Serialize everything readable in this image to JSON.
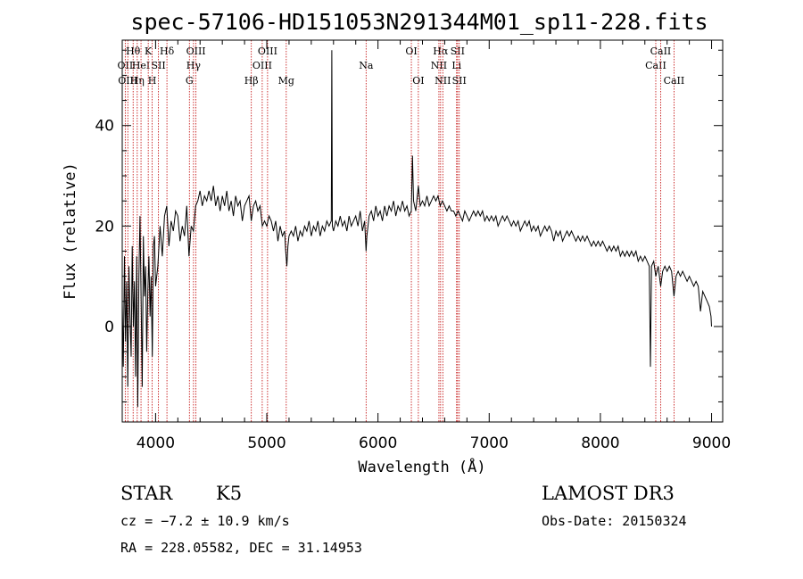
{
  "chart_data": {
    "type": "line",
    "title": "spec-57106-HD151053N291344M01_sp11-228.fits",
    "xlabel": "Wavelength (Å)",
    "ylabel": "Flux (relative)",
    "xlim": [
      3700,
      9100
    ],
    "ylim": [
      -19,
      57
    ],
    "x_ticks": [
      4000,
      5000,
      6000,
      7000,
      8000,
      9000
    ],
    "y_ticks": [
      0,
      20,
      40
    ],
    "grid": false,
    "series": [
      {
        "color": "#000000",
        "points": [
          [
            3700,
            5
          ],
          [
            3710,
            -8
          ],
          [
            3720,
            14
          ],
          [
            3730,
            -3
          ],
          [
            3740,
            9
          ],
          [
            3750,
            -12
          ],
          [
            3760,
            12
          ],
          [
            3770,
            2
          ],
          [
            3780,
            -6
          ],
          [
            3790,
            16
          ],
          [
            3800,
            0
          ],
          [
            3810,
            9
          ],
          [
            3820,
            -10
          ],
          [
            3830,
            14
          ],
          [
            3840,
            -16
          ],
          [
            3850,
            10
          ],
          [
            3860,
            22
          ],
          [
            3870,
            5
          ],
          [
            3880,
            -12
          ],
          [
            3890,
            18
          ],
          [
            3900,
            6
          ],
          [
            3910,
            12
          ],
          [
            3920,
            -5
          ],
          [
            3930,
            7
          ],
          [
            3940,
            14
          ],
          [
            3950,
            2
          ],
          [
            3960,
            10
          ],
          [
            3970,
            -6
          ],
          [
            3980,
            16
          ],
          [
            3990,
            18
          ],
          [
            4000,
            8
          ],
          [
            4020,
            12
          ],
          [
            4040,
            20
          ],
          [
            4060,
            14
          ],
          [
            4080,
            22
          ],
          [
            4100,
            24
          ],
          [
            4120,
            16
          ],
          [
            4140,
            21
          ],
          [
            4160,
            19
          ],
          [
            4180,
            23
          ],
          [
            4200,
            22
          ],
          [
            4220,
            17
          ],
          [
            4240,
            20
          ],
          [
            4260,
            18
          ],
          [
            4280,
            24
          ],
          [
            4300,
            14
          ],
          [
            4320,
            20
          ],
          [
            4340,
            19
          ],
          [
            4360,
            24
          ],
          [
            4380,
            25
          ],
          [
            4400,
            27
          ],
          [
            4420,
            24
          ],
          [
            4440,
            26
          ],
          [
            4460,
            25
          ],
          [
            4480,
            27
          ],
          [
            4500,
            25
          ],
          [
            4520,
            28
          ],
          [
            4540,
            24
          ],
          [
            4560,
            26
          ],
          [
            4580,
            23
          ],
          [
            4600,
            26
          ],
          [
            4620,
            24
          ],
          [
            4640,
            27
          ],
          [
            4660,
            23
          ],
          [
            4680,
            25
          ],
          [
            4700,
            22
          ],
          [
            4720,
            26
          ],
          [
            4740,
            24
          ],
          [
            4760,
            25
          ],
          [
            4780,
            21
          ],
          [
            4800,
            24
          ],
          [
            4820,
            25
          ],
          [
            4840,
            26
          ],
          [
            4860,
            21
          ],
          [
            4880,
            24
          ],
          [
            4900,
            25
          ],
          [
            4920,
            23
          ],
          [
            4940,
            24
          ],
          [
            4960,
            20
          ],
          [
            4980,
            21
          ],
          [
            5000,
            20
          ],
          [
            5020,
            22
          ],
          [
            5040,
            21
          ],
          [
            5060,
            19
          ],
          [
            5080,
            21
          ],
          [
            5100,
            17
          ],
          [
            5120,
            20
          ],
          [
            5140,
            18
          ],
          [
            5160,
            19
          ],
          [
            5170,
            15
          ],
          [
            5180,
            12
          ],
          [
            5190,
            16
          ],
          [
            5200,
            18
          ],
          [
            5220,
            19
          ],
          [
            5240,
            18
          ],
          [
            5260,
            20
          ],
          [
            5280,
            17
          ],
          [
            5300,
            19
          ],
          [
            5320,
            18
          ],
          [
            5340,
            20
          ],
          [
            5360,
            19
          ],
          [
            5380,
            21
          ],
          [
            5400,
            18
          ],
          [
            5420,
            20
          ],
          [
            5440,
            19
          ],
          [
            5460,
            21
          ],
          [
            5480,
            18
          ],
          [
            5500,
            20
          ],
          [
            5520,
            19
          ],
          [
            5540,
            21
          ],
          [
            5560,
            20
          ],
          [
            5580,
            21
          ],
          [
            5585,
            55
          ],
          [
            5590,
            20
          ],
          [
            5600,
            19
          ],
          [
            5620,
            21
          ],
          [
            5640,
            20
          ],
          [
            5660,
            22
          ],
          [
            5680,
            20
          ],
          [
            5700,
            21
          ],
          [
            5720,
            19
          ],
          [
            5740,
            22
          ],
          [
            5760,
            20
          ],
          [
            5780,
            21
          ],
          [
            5800,
            22
          ],
          [
            5820,
            20
          ],
          [
            5840,
            23
          ],
          [
            5860,
            19
          ],
          [
            5880,
            21
          ],
          [
            5893,
            15
          ],
          [
            5900,
            18
          ],
          [
            5920,
            22
          ],
          [
            5940,
            23
          ],
          [
            5960,
            21
          ],
          [
            5980,
            24
          ],
          [
            6000,
            22
          ],
          [
            6020,
            23
          ],
          [
            6040,
            21
          ],
          [
            6060,
            24
          ],
          [
            6080,
            22
          ],
          [
            6100,
            24
          ],
          [
            6120,
            23
          ],
          [
            6140,
            25
          ],
          [
            6160,
            22
          ],
          [
            6180,
            24
          ],
          [
            6200,
            23
          ],
          [
            6220,
            25
          ],
          [
            6240,
            23
          ],
          [
            6260,
            24
          ],
          [
            6280,
            22
          ],
          [
            6300,
            23
          ],
          [
            6310,
            34
          ],
          [
            6320,
            25
          ],
          [
            6340,
            23
          ],
          [
            6363,
            28
          ],
          [
            6380,
            24
          ],
          [
            6400,
            25
          ],
          [
            6420,
            24
          ],
          [
            6440,
            26
          ],
          [
            6460,
            24
          ],
          [
            6480,
            25
          ],
          [
            6500,
            26
          ],
          [
            6520,
            25
          ],
          [
            6540,
            26
          ],
          [
            6560,
            24
          ],
          [
            6580,
            25
          ],
          [
            6600,
            24
          ],
          [
            6620,
            23
          ],
          [
            6640,
            24
          ],
          [
            6660,
            23
          ],
          [
            6680,
            23
          ],
          [
            6700,
            22
          ],
          [
            6720,
            23
          ],
          [
            6740,
            22
          ],
          [
            6760,
            21
          ],
          [
            6780,
            23
          ],
          [
            6800,
            22
          ],
          [
            6820,
            21
          ],
          [
            6840,
            22
          ],
          [
            6860,
            23
          ],
          [
            6880,
            22
          ],
          [
            6900,
            23
          ],
          [
            6920,
            22
          ],
          [
            6940,
            23
          ],
          [
            6960,
            21
          ],
          [
            6980,
            22
          ],
          [
            7000,
            21
          ],
          [
            7020,
            22
          ],
          [
            7040,
            21
          ],
          [
            7060,
            22
          ],
          [
            7080,
            20
          ],
          [
            7100,
            21
          ],
          [
            7120,
            22
          ],
          [
            7140,
            21
          ],
          [
            7160,
            22
          ],
          [
            7180,
            21
          ],
          [
            7200,
            20
          ],
          [
            7220,
            21
          ],
          [
            7240,
            20
          ],
          [
            7260,
            21
          ],
          [
            7280,
            19
          ],
          [
            7300,
            20
          ],
          [
            7320,
            21
          ],
          [
            7340,
            20
          ],
          [
            7360,
            21
          ],
          [
            7380,
            19
          ],
          [
            7400,
            20
          ],
          [
            7420,
            19
          ],
          [
            7440,
            20
          ],
          [
            7460,
            18
          ],
          [
            7480,
            19
          ],
          [
            7500,
            20
          ],
          [
            7520,
            19
          ],
          [
            7540,
            20
          ],
          [
            7560,
            19
          ],
          [
            7580,
            17
          ],
          [
            7600,
            19
          ],
          [
            7620,
            18
          ],
          [
            7640,
            19
          ],
          [
            7660,
            17
          ],
          [
            7680,
            18
          ],
          [
            7700,
            19
          ],
          [
            7720,
            18
          ],
          [
            7740,
            19
          ],
          [
            7760,
            18
          ],
          [
            7780,
            17
          ],
          [
            7800,
            18
          ],
          [
            7820,
            17
          ],
          [
            7840,
            18
          ],
          [
            7860,
            17
          ],
          [
            7880,
            18
          ],
          [
            7900,
            17
          ],
          [
            7920,
            16
          ],
          [
            7940,
            17
          ],
          [
            7960,
            16
          ],
          [
            7980,
            17
          ],
          [
            8000,
            16
          ],
          [
            8020,
            17
          ],
          [
            8040,
            16
          ],
          [
            8060,
            15
          ],
          [
            8080,
            16
          ],
          [
            8100,
            15
          ],
          [
            8120,
            16
          ],
          [
            8140,
            15
          ],
          [
            8160,
            16
          ],
          [
            8180,
            14
          ],
          [
            8200,
            15
          ],
          [
            8220,
            14
          ],
          [
            8240,
            15
          ],
          [
            8260,
            14
          ],
          [
            8280,
            15
          ],
          [
            8300,
            14
          ],
          [
            8320,
            15
          ],
          [
            8340,
            13
          ],
          [
            8360,
            14
          ],
          [
            8380,
            13
          ],
          [
            8400,
            14
          ],
          [
            8420,
            13
          ],
          [
            8440,
            12
          ],
          [
            8450,
            -8
          ],
          [
            8460,
            12
          ],
          [
            8480,
            13
          ],
          [
            8498,
            10
          ],
          [
            8520,
            12
          ],
          [
            8542,
            8
          ],
          [
            8560,
            11
          ],
          [
            8580,
            12
          ],
          [
            8600,
            11
          ],
          [
            8620,
            12
          ],
          [
            8640,
            11
          ],
          [
            8662,
            6
          ],
          [
            8680,
            10
          ],
          [
            8700,
            11
          ],
          [
            8720,
            10
          ],
          [
            8740,
            11
          ],
          [
            8760,
            10
          ],
          [
            8780,
            9
          ],
          [
            8800,
            10
          ],
          [
            8820,
            9
          ],
          [
            8840,
            8
          ],
          [
            8860,
            9
          ],
          [
            8880,
            8
          ],
          [
            8900,
            3
          ],
          [
            8920,
            7
          ],
          [
            8940,
            6
          ],
          [
            8960,
            5
          ],
          [
            8980,
            4
          ],
          [
            8995,
            2
          ],
          [
            9000,
            0
          ]
        ]
      }
    ],
    "line_markers": [
      {
        "x": 3727,
        "label": "OII",
        "row": 2
      },
      {
        "x": 3750,
        "label": "OIII",
        "row": 3
      },
      {
        "x": 3798,
        "label": "Hθ",
        "row": 1
      },
      {
        "x": 3835,
        "label": "Hη",
        "row": 3
      },
      {
        "x": 3869,
        "label": "HeI",
        "row": 2
      },
      {
        "x": 3934,
        "label": "K",
        "row": 1
      },
      {
        "x": 3969,
        "label": "H",
        "row": 3
      },
      {
        "x": 4026,
        "label": "SII",
        "row": 2
      },
      {
        "x": 4102,
        "label": "Hδ",
        "row": 1
      },
      {
        "x": 4304,
        "label": "G",
        "row": 3
      },
      {
        "x": 4341,
        "label": "Hγ",
        "row": 2
      },
      {
        "x": 4363,
        "label": "OIII",
        "row": 1
      },
      {
        "x": 4861,
        "label": "Hβ",
        "row": 3
      },
      {
        "x": 4959,
        "label": "OIII",
        "row": 2
      },
      {
        "x": 5007,
        "label": "OIII",
        "row": 1
      },
      {
        "x": 5175,
        "label": "Mg",
        "row": 3
      },
      {
        "x": 5893,
        "label": "Na",
        "row": 2
      },
      {
        "x": 6300,
        "label": "OI",
        "row": 1
      },
      {
        "x": 6363,
        "label": "OI",
        "row": 3
      },
      {
        "x": 6548,
        "label": "NII",
        "row": 2
      },
      {
        "x": 6563,
        "label": "Hα",
        "row": 1
      },
      {
        "x": 6583,
        "label": "NII",
        "row": 3
      },
      {
        "x": 6707,
        "label": "Li",
        "row": 2
      },
      {
        "x": 6716,
        "label": "SII",
        "row": 1
      },
      {
        "x": 6731,
        "label": "SII",
        "row": 3
      },
      {
        "x": 8498,
        "label": "CaII",
        "row": 2
      },
      {
        "x": 8542,
        "label": "CaII",
        "row": 1
      },
      {
        "x": 8662,
        "label": "CaII",
        "row": 3
      }
    ],
    "marker_color": "#c00000"
  },
  "footer": {
    "class": "STAR",
    "subclass": "K5",
    "survey": "LAMOST DR3",
    "cz": "cz = −7.2 ± 10.9 km/s",
    "obs_date": "Obs-Date: 20150324",
    "coords": "RA = 228.05582, DEC =  31.14953"
  }
}
